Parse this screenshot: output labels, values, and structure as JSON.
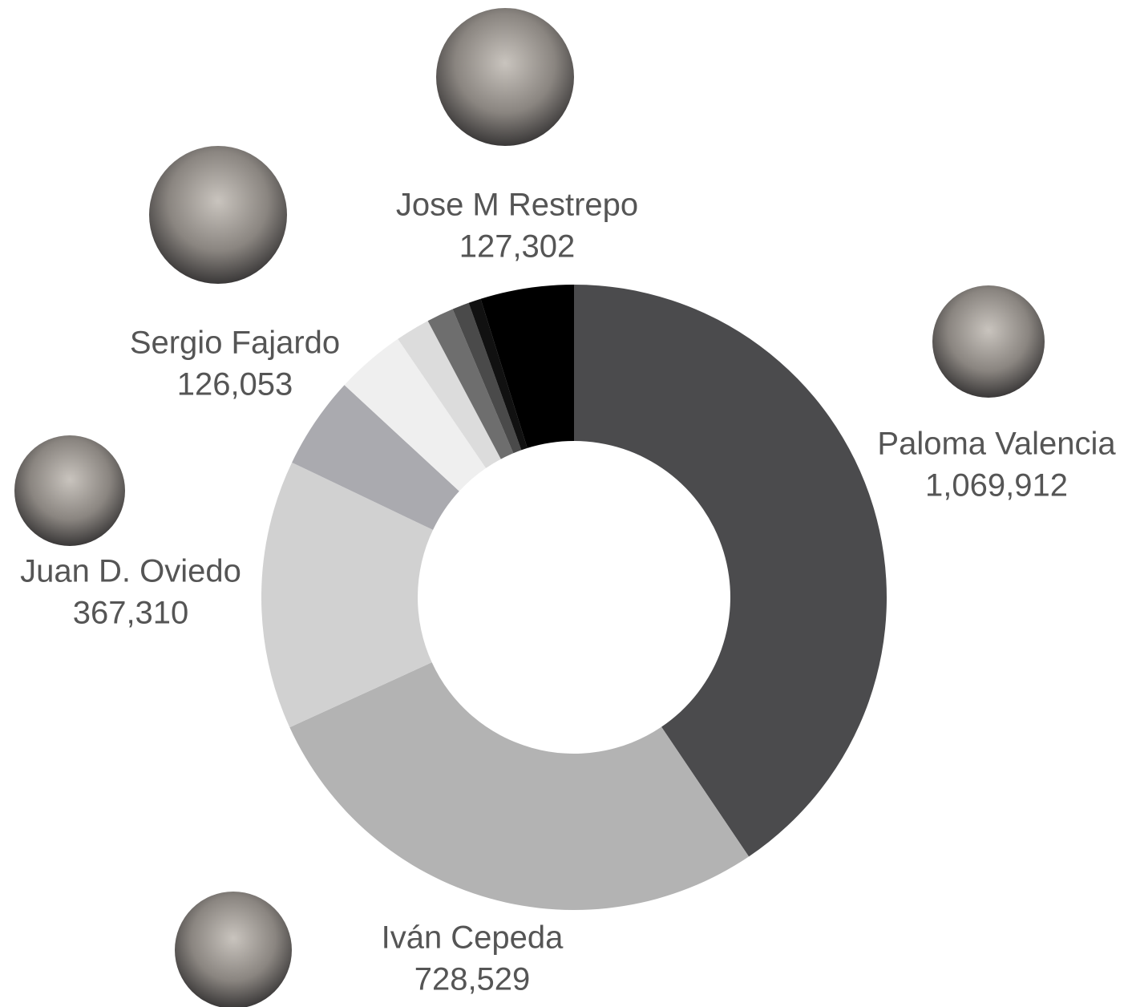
{
  "chart_data": {
    "type": "pie",
    "categories": [
      "Paloma Valencia",
      "Iván Cepeda",
      "Juan D. Oviedo",
      "Sergio Fajardo",
      null,
      null,
      null,
      null,
      null,
      "Jose M Restrepo"
    ],
    "values": [
      1069912,
      728529,
      367310,
      126053,
      95000,
      47000,
      37000,
      23000,
      17000,
      127302
    ],
    "value_labels": [
      "1,069,912",
      "728,529",
      "367,310",
      "126,053",
      null,
      null,
      null,
      null,
      null,
      "127,302"
    ],
    "colors": [
      "#4b4b4d",
      "#b3b3b3",
      "#d1d1d1",
      "#aaaaaf",
      "#efefef",
      "#dcdcdc",
      "#6e6e6e",
      "#4a4a4a",
      "#111111",
      "#000000"
    ]
  }
}
